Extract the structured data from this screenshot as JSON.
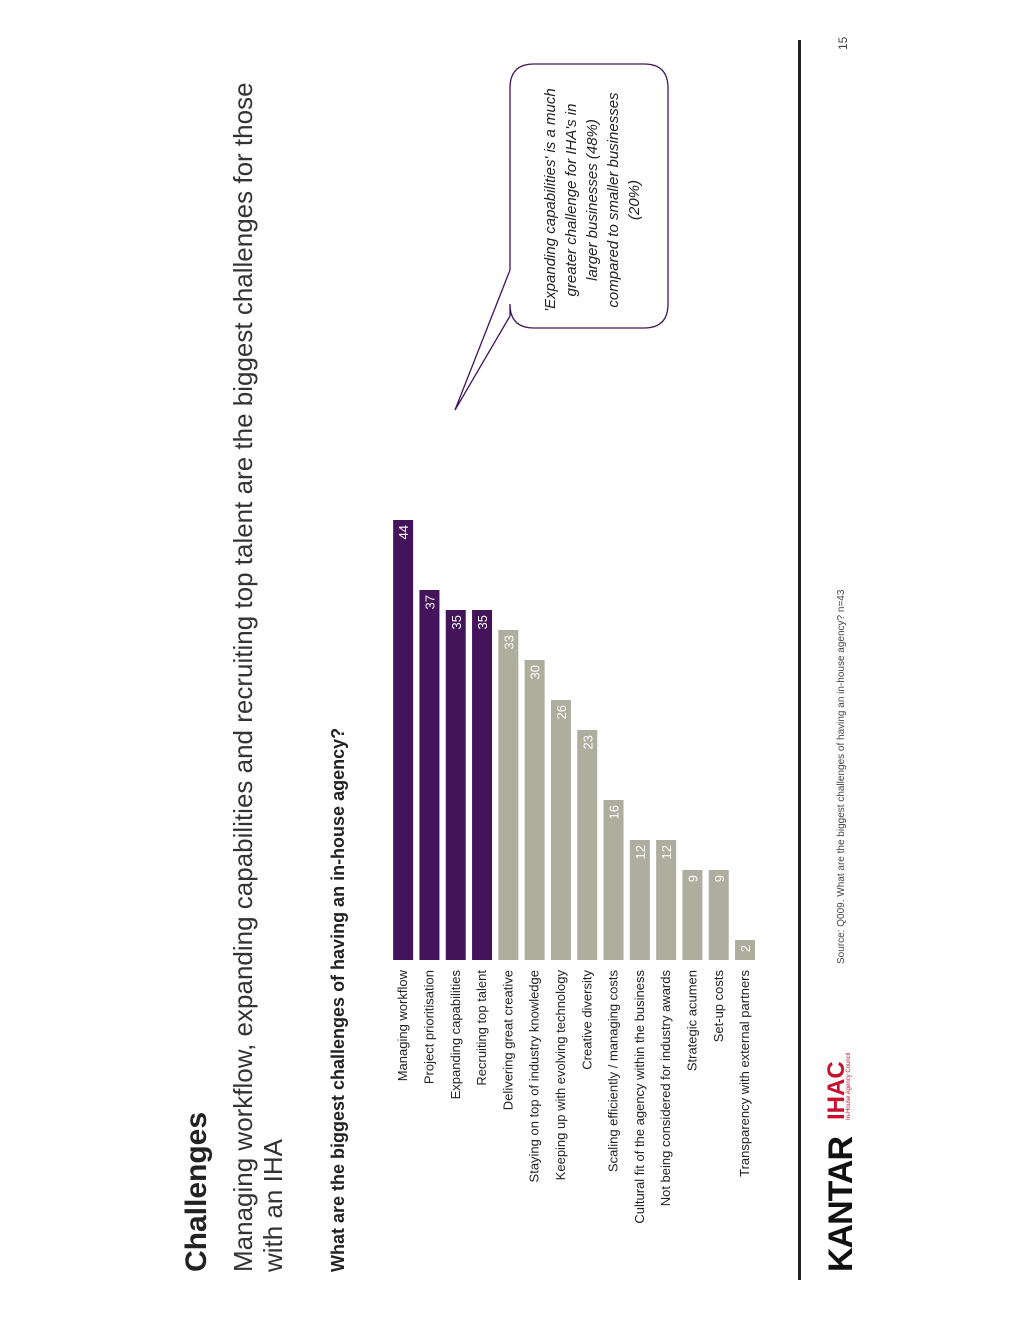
{
  "header": {
    "section_title": "Challenges",
    "headline": "Managing workflow, expanding capabilities and recruiting top talent are the biggest challenges for those with an IHA",
    "question": "What are the biggest challenges of having an in-house agency?"
  },
  "chart_data": {
    "type": "bar",
    "orientation": "vertical",
    "categories": [
      "Managing workflow",
      "Project prioritisation",
      "Expanding capabilities",
      "Recruiting top talent",
      "Delivering great creative",
      "Staying on top of industry knowledge",
      "Keeping up with evolving technology",
      "Creative diversity",
      "Scaling efficiently / managing costs",
      "Cultural fit of the agency within the business",
      "Not being considered for industry awards",
      "Strategic acumen",
      "Set-up costs",
      "Transparency with external partners"
    ],
    "values": [
      44,
      37,
      35,
      35,
      33,
      30,
      26,
      23,
      16,
      12,
      12,
      9,
      9,
      2
    ],
    "highlighted_count": 4,
    "colors": {
      "highlight": "#43145a",
      "other": "#aeae9f",
      "value_label": "#ffffff"
    },
    "ylim": [
      0,
      44
    ],
    "grid": false,
    "legend": "none",
    "data_labels": true
  },
  "callout": {
    "text": "'Expanding capabilities' is a much greater challenge for IHA's in larger businesses (48%) compared to smaller businesses (20%)",
    "border_color": "#43145a"
  },
  "footer": {
    "kantar_logo": "KANTAR",
    "iha_logo": "IHAC",
    "iha_logo_sub": "In-House Agency Council",
    "source": "Source: Q009. What are the biggest challenges of having an in-house agency? n=43",
    "page_number": "15",
    "accent_color": "#c8102e"
  }
}
